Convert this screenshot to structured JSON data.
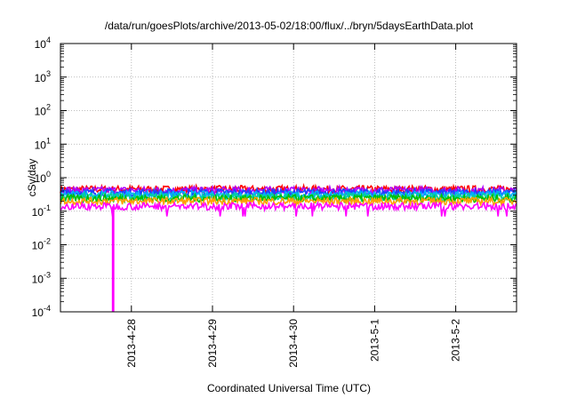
{
  "chart_data": {
    "type": "line",
    "title": "/data/run/goesPlots/archive/2013-05-02/18:00/flux/../bryn/5daysEarthData.plot",
    "xlabel": "Coordinated Universal Time (UTC)",
    "ylabel": "cSv/day",
    "yscale": "log",
    "ylim": [
      0.0001,
      10000
    ],
    "yticks": [
      {
        "value": 0.0001,
        "mantissa": "10",
        "exponent": "-4"
      },
      {
        "value": 0.001,
        "mantissa": "10",
        "exponent": "-3"
      },
      {
        "value": 0.01,
        "mantissa": "10",
        "exponent": "-2"
      },
      {
        "value": 0.1,
        "mantissa": "10",
        "exponent": "-1"
      },
      {
        "value": 1,
        "mantissa": "10",
        "exponent": "0"
      },
      {
        "value": 10,
        "mantissa": "10",
        "exponent": "1"
      },
      {
        "value": 100,
        "mantissa": "10",
        "exponent": "2"
      },
      {
        "value": 1000,
        "mantissa": "10",
        "exponent": "3"
      },
      {
        "value": 10000,
        "mantissa": "10",
        "exponent": "4"
      }
    ],
    "xlim": [
      "2013-04-27 03:00",
      "2013-05-02 18:00"
    ],
    "xticks": [
      "2013-4-28",
      "2013-4-29",
      "2013-4-30",
      "2013-5-1",
      "2013-5-2"
    ],
    "grid": true,
    "series": [
      {
        "color": "#ff0000",
        "level": 0.45
      },
      {
        "color": "#b000ff",
        "level": 0.42
      },
      {
        "color": "#2040ff",
        "level": 0.36
      },
      {
        "color": "#00b0ff",
        "level": 0.31
      },
      {
        "color": "#00d0a0",
        "level": 0.27
      },
      {
        "color": "#00c000",
        "level": 0.24
      },
      {
        "color": "#ffa000",
        "level": 0.2
      },
      {
        "color": "#ff00ff",
        "level": 0.14
      }
    ],
    "annotations": [
      {
        "type": "dropout",
        "series_color": "#ff00ff",
        "x_start": "2013-04-27 18:30",
        "x_end": "2013-04-27 18:40",
        "min_value": 0.0001
      }
    ]
  }
}
